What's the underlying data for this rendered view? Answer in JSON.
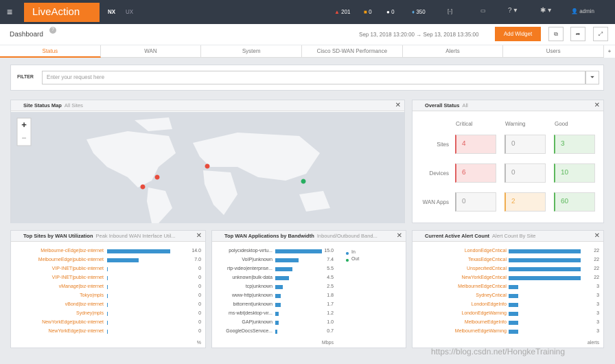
{
  "header": {
    "brand": "LiveAction",
    "nav": [
      "NX",
      "UX"
    ],
    "stats": [
      "201",
      "0",
      "0",
      "350"
    ],
    "user": "admin"
  },
  "toolbar": {
    "title": "Dashboard",
    "time_from": "Sep 13, 2018 13:20:00",
    "arrow": "→",
    "time_to": "Sep 13, 2018 13:35:00",
    "button": "Add Widget"
  },
  "tabs": [
    "Status",
    "WAN",
    "System",
    "Cisco SD-WAN Performance",
    "Alerts",
    "Users"
  ],
  "filter": {
    "label": "FILTER",
    "placeholder": "Enter your request here"
  },
  "map_widget": {
    "title": "Site Status Map",
    "subtitle": "All Sites"
  },
  "status_widget": {
    "title": "Overall Status",
    "subtitle": "All",
    "columns": [
      "Critical",
      "Warning",
      "Good"
    ],
    "rows": [
      {
        "label": "Sites",
        "values": [
          "4",
          "0",
          "3"
        ]
      },
      {
        "label": "Devices",
        "values": [
          "6",
          "0",
          "10"
        ]
      },
      {
        "label": "WAN Apps",
        "values": [
          "0",
          "2",
          "60"
        ]
      }
    ]
  },
  "sites_widget": {
    "title": "Top Sites by WAN Utilization",
    "subtitle": "Peak Inbound WAN Interface Util...",
    "unit": "%",
    "categories": [
      "Melbourne-cEdge|biz-internet",
      "MelbourneEdge|public-internet",
      "VIP-INET|public-internet",
      "VIP-INET|public-internet",
      "vManage|biz-internet",
      "Tokyo|mpls",
      "vBond|biz-internet",
      "Sydney|mpls",
      "NewYorkEdge|public-internet",
      "NewYorkEdge|biz-internet"
    ],
    "values": [
      14.0,
      7.0,
      0,
      0,
      0,
      0,
      0,
      0,
      0,
      0
    ],
    "value_labels": [
      "14.0",
      "7.0",
      "0",
      "0",
      "0",
      "0",
      "0",
      "0",
      "0",
      "0"
    ],
    "color": "#3a93cf"
  },
  "apps_widget": {
    "title": "Top WAN Applications by Bandwidth",
    "subtitle": "Inbound/Outbound Band...",
    "unit": "Mbps",
    "legend": [
      "In",
      "Out"
    ],
    "categories": [
      "polycidesktop-virtu...",
      "VoIP|unknown",
      "rtp-video|enterprise...",
      "unknown|bulk-data",
      "tcp|unknown",
      "www-http|unknown",
      "bittorrent|unknown",
      "ms-wbt|desktop-vir...",
      "GAP|unknown",
      "GoogleDocsService..."
    ],
    "values": [
      15.0,
      7.4,
      5.5,
      4.5,
      2.5,
      1.8,
      1.7,
      1.2,
      1.0,
      0.7
    ],
    "value_labels": [
      "15.0",
      "7.4",
      "5.5",
      "4.5",
      "2.5",
      "1.8",
      "1.7",
      "1.2",
      "1.0",
      "0.7"
    ],
    "color": "#3a93cf"
  },
  "alerts_widget": {
    "title": "Current Active Alert Count",
    "subtitle": "Alert Count By Site",
    "unit": "alerts",
    "categories": [
      "LondonEdgeCritical",
      "TexasEdgeCritical",
      "UnspecifiedCritical",
      "NewYorkEdgeCritical",
      "MelbourneEdgeCritical",
      "SydneyCritical",
      "LondonEdgeInfo",
      "LondonEdgeWarning",
      "MelbourneEdgeInfo",
      "MelbourneEdgeWarning"
    ],
    "values": [
      22,
      22,
      22,
      22,
      3,
      3,
      3,
      3,
      3,
      3
    ],
    "color": "#3a93cf"
  },
  "watermark": "https://blog.csdn.net/HongkeTraining"
}
